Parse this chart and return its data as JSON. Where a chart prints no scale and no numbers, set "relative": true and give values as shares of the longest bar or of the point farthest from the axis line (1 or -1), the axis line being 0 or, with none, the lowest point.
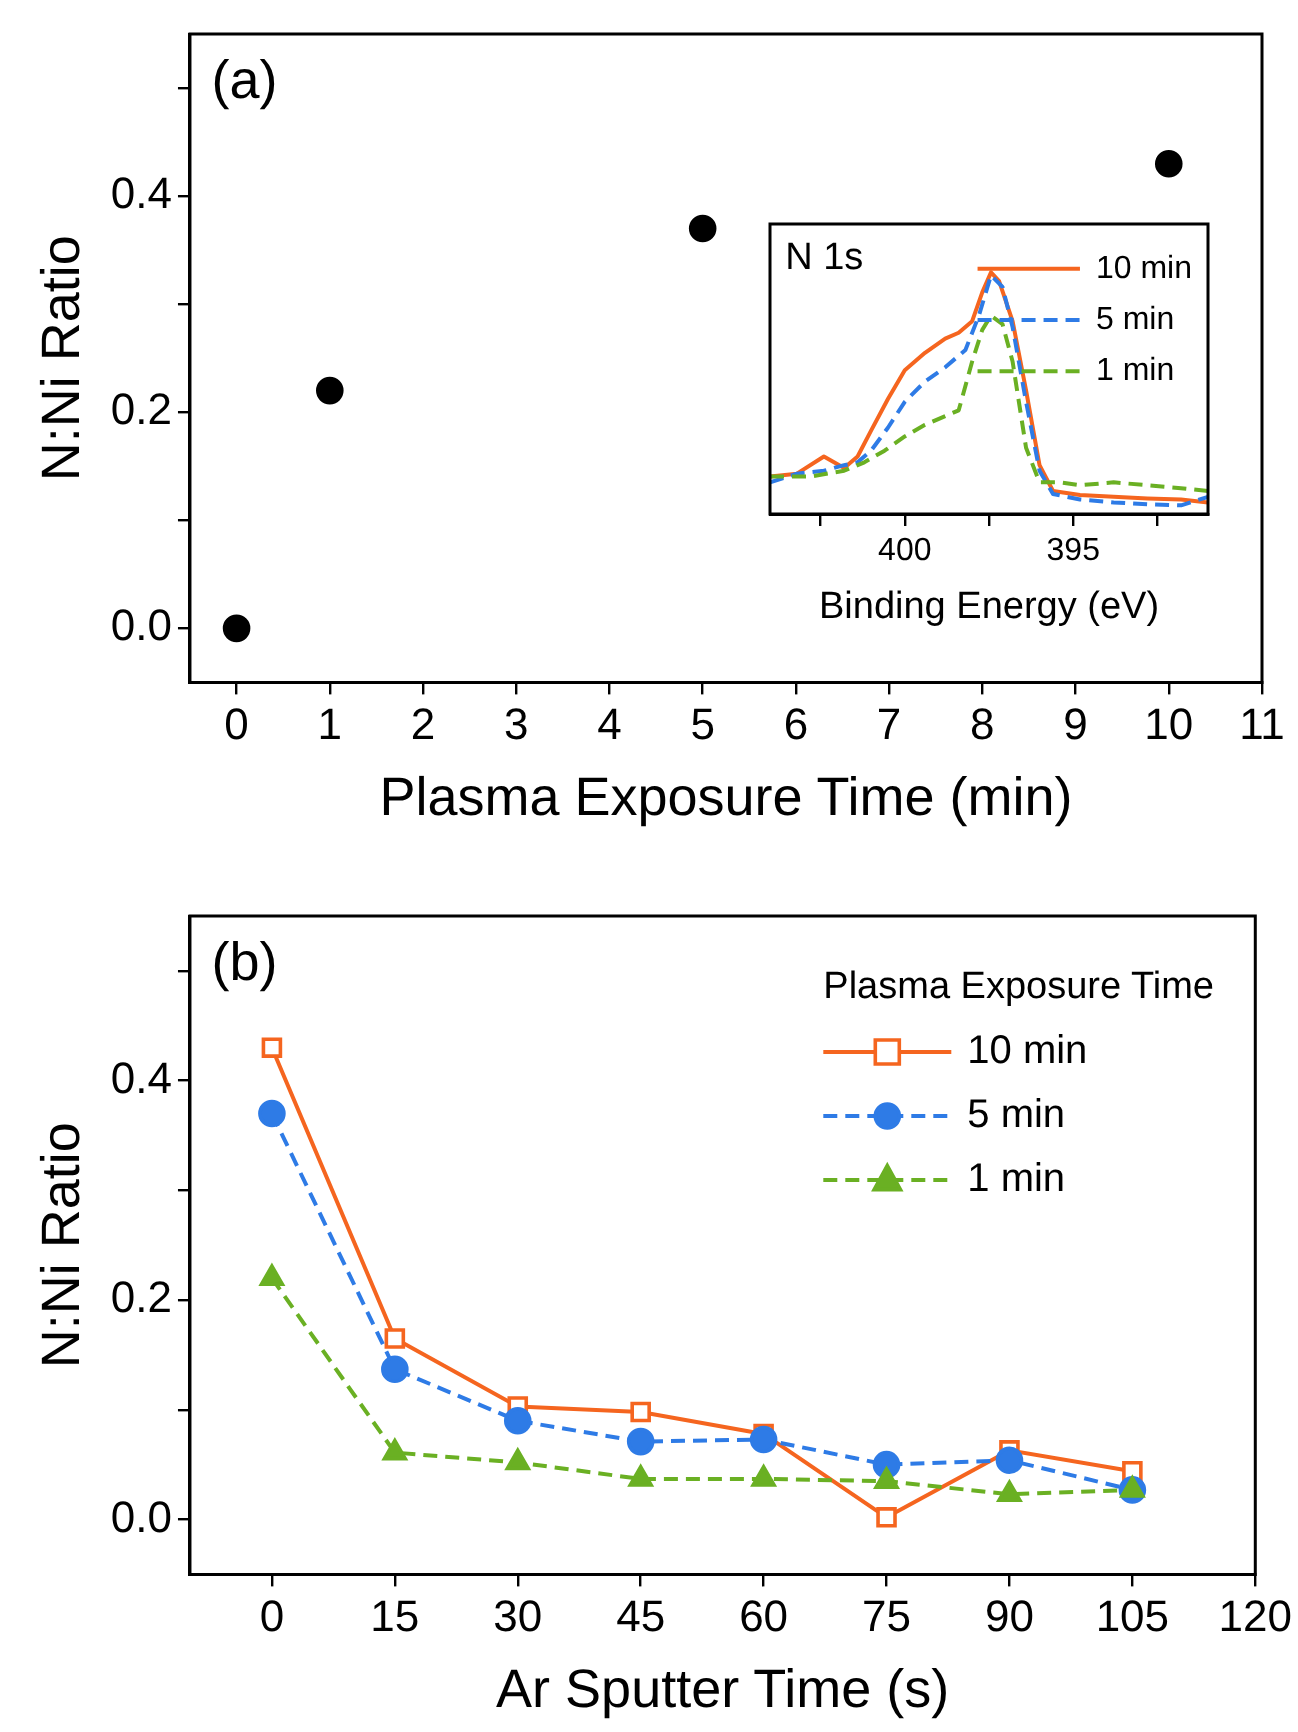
{
  "chart_data": [
    {
      "type": "scatter",
      "xlabel": "Plasma Exposure Time (min)",
      "ylabel": "N:Ni Ratio",
      "annotations": [
        "(a)"
      ],
      "x": [
        0,
        1,
        5,
        10
      ],
      "values": [
        0,
        0.22,
        0.37,
        0.43
      ],
      "color": "#000000",
      "marker": "circle",
      "xlim": [
        -0.5,
        11
      ],
      "xticks": [
        0,
        1,
        2,
        3,
        4,
        5,
        6,
        7,
        8,
        9,
        10,
        11
      ],
      "ylim": [
        -0.05,
        0.55
      ],
      "yticks": [
        {
          "value": 0,
          "label": "0.0"
        },
        {
          "value": 0.1,
          "label": null
        },
        {
          "value": 0.2,
          "label": "0.2"
        },
        {
          "value": 0.3,
          "label": null
        },
        {
          "value": 0.4,
          "label": "0.4"
        },
        {
          "value": 0.5,
          "label": null
        }
      ]
    },
    {
      "type": "line",
      "xlabel": "Binding Energy (eV)",
      "annotations": [
        "N 1s"
      ],
      "relative": true,
      "legend": "top right",
      "tick_labels": "x",
      "marker": "none",
      "xlim": [
        404,
        391
      ],
      "xticks": [
        {
          "value": 402.5,
          "label": null
        },
        400,
        {
          "value": 397.5,
          "label": null
        },
        395,
        {
          "value": 392.5,
          "label": null
        }
      ],
      "series": [
        {
          "name": "10 min",
          "color": "#f5651f",
          "line_style": "solid",
          "x": [
            404,
            403.2,
            402.4,
            401.8,
            401.4,
            401,
            400.5,
            400,
            399.4,
            398.8,
            398.4,
            398,
            397.7,
            397.44,
            397.2,
            396.8,
            396.4,
            396,
            395.6,
            394.8,
            393.8,
            392.8,
            391.8,
            391
          ],
          "values": [
            0.155,
            0.167,
            0.238,
            0.19,
            0.238,
            0.345,
            0.476,
            0.595,
            0.667,
            0.726,
            0.75,
            0.798,
            0.917,
            1,
            0.964,
            0.798,
            0.512,
            0.202,
            0.095,
            0.079,
            0.071,
            0.064,
            0.06,
            0.048
          ]
        },
        {
          "name": "5 min",
          "color": "#2e7be6",
          "line_style": "dashed",
          "x": [
            404,
            403.2,
            402.4,
            401.8,
            401.4,
            401,
            400.5,
            400,
            399.4,
            398.8,
            398.2,
            397.8,
            397.44,
            397.1,
            396.8,
            396.4,
            396,
            395.6,
            394.8,
            393.8,
            392.8,
            391.8,
            391
          ],
          "values": [
            0.131,
            0.167,
            0.179,
            0.202,
            0.214,
            0.262,
            0.357,
            0.464,
            0.548,
            0.607,
            0.679,
            0.821,
            0.988,
            0.94,
            0.774,
            0.464,
            0.179,
            0.083,
            0.06,
            0.048,
            0.04,
            0.036,
            0.071
          ]
        },
        {
          "name": "1 min",
          "color": "#6ab023",
          "line_style": "dashed",
          "x": [
            404,
            402.8,
            401.8,
            401.2,
            400.6,
            400,
            399.4,
            398.8,
            398.4,
            398,
            397.7,
            397.44,
            397.1,
            396.8,
            396.4,
            396,
            395.4,
            394.8,
            393.8,
            392.8,
            391.8,
            391
          ],
          "values": [
            0.155,
            0.155,
            0.179,
            0.214,
            0.262,
            0.321,
            0.369,
            0.405,
            0.429,
            0.631,
            0.762,
            0.821,
            0.786,
            0.631,
            0.274,
            0.131,
            0.131,
            0.119,
            0.131,
            0.119,
            0.107,
            0.095
          ]
        }
      ]
    },
    {
      "type": "line",
      "xlabel": "Ar Sputter Time (s)",
      "ylabel": "N:Ni Ratio",
      "annotations": [
        "(b)"
      ],
      "legend": "top right",
      "legend_title": "Plasma Exposure Time",
      "x": [
        0,
        15,
        30,
        45,
        60,
        75,
        90,
        105
      ],
      "xlim": [
        -10,
        120
      ],
      "xticks": [
        0,
        15,
        30,
        45,
        60,
        75,
        90,
        105,
        120
      ],
      "ylim": [
        -0.05,
        0.55
      ],
      "yticks": [
        {
          "value": 0,
          "label": "0.0"
        },
        {
          "value": 0.1,
          "label": null
        },
        {
          "value": 0.2,
          "label": "0.2"
        },
        {
          "value": 0.3,
          "label": null
        },
        {
          "value": 0.4,
          "label": "0.4"
        },
        {
          "value": 0.5,
          "label": null
        }
      ],
      "series": [
        {
          "name": "10 min",
          "color": "#f5651f",
          "marker": "square",
          "line_style": "solid",
          "values": [
            0.43,
            0.165,
            0.103,
            0.098,
            0.078,
            0.002,
            0.063,
            0.044
          ]
        },
        {
          "name": "5 min",
          "color": "#2e7be6",
          "marker": "circle",
          "line_style": "dashed",
          "values": [
            0.37,
            0.137,
            0.09,
            0.071,
            0.073,
            0.05,
            0.054,
            0.027
          ]
        },
        {
          "name": "1 min",
          "color": "#6ab023",
          "marker": "triangle",
          "line_style": "dashed",
          "values": [
            0.22,
            0.061,
            0.052,
            0.037,
            0.037,
            0.035,
            0.023,
            0.027
          ]
        }
      ]
    }
  ]
}
